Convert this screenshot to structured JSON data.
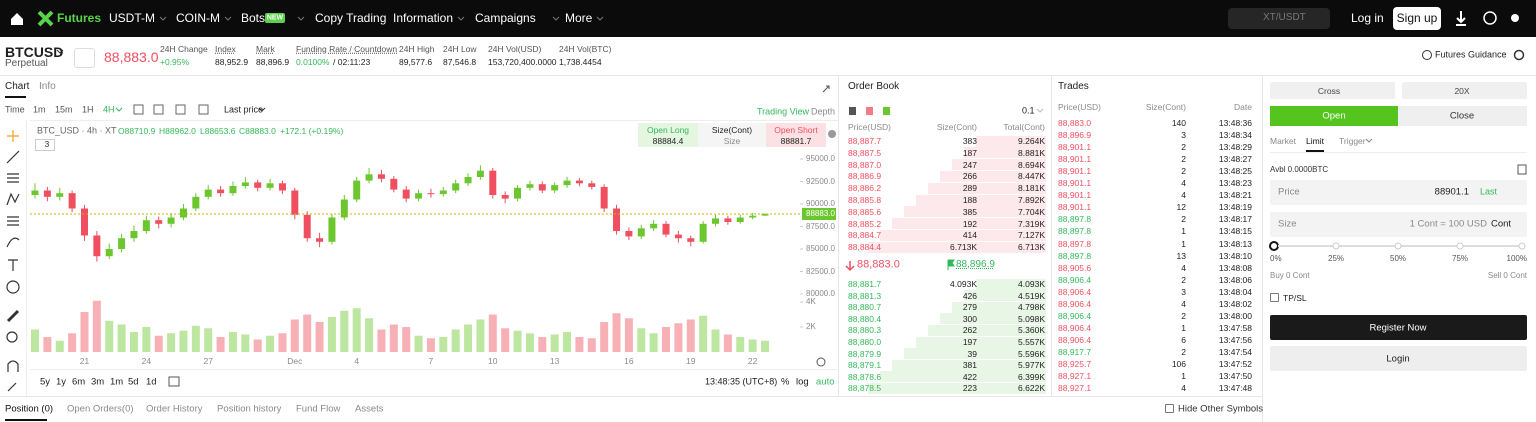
{
  "nav": {
    "logo": "Futures",
    "menu": [
      "USDT-M",
      "COIN-M",
      "Bots",
      "Copy Trading",
      "Information",
      "Campaigns",
      "More"
    ],
    "badge": "NEW",
    "search": "XT/USDT",
    "login": "Log in",
    "signup": "Sign up"
  },
  "ticker": {
    "symbol": "BTCUSD",
    "subtitle": "Perpetual",
    "price": "88,883.0",
    "stats": [
      {
        "label": "24H Change",
        "value": "+0.95%"
      },
      {
        "label": "Index",
        "value": "88,952.9"
      },
      {
        "label": "Mark",
        "value": "88,896.9"
      },
      {
        "label": "Funding Rate / Countdown",
        "value": "0.0100%",
        "value2": "/ 02:11:23"
      },
      {
        "label": "24H High",
        "value": "89,577.6"
      },
      {
        "label": "24H Low",
        "value": "87,546.8"
      },
      {
        "label": "24H Vol(USD)",
        "value": "153,720,400.0000"
      },
      {
        "label": "24H Vol(BTC)",
        "value": "1,738.4454"
      }
    ],
    "guidance": "Futures Guidance"
  },
  "chart": {
    "tabs": [
      "Chart",
      "Info"
    ],
    "time_label": "Time",
    "intervals": [
      "1m",
      "15m",
      "1H",
      "4H"
    ],
    "price_type": "Last price",
    "views": [
      "Trading View",
      "Depth"
    ],
    "legend": "BTC_USD · 4h · XT",
    "ohlc": [
      "O88710.9",
      "H88962.0",
      "L88653.6",
      "C88883.0",
      "+172.1 (+0.19%)"
    ],
    "count": "3",
    "open_long": "Open Long",
    "long_price": "88884.4",
    "size_label": "Size(Cont)",
    "size": "Size",
    "open_short": "Open Short",
    "short_price": "88881.7",
    "ranges": [
      "5y",
      "1y",
      "6m",
      "3m",
      "1m",
      "5d",
      "1d"
    ],
    "clock": "13:48:35 (UTC+8)",
    "scale_options": [
      "%",
      "log",
      "auto"
    ],
    "up_color": "#6cc72f",
    "down_color": "#ef4f5f",
    "ylim": [
      80000,
      95000
    ],
    "yticks": [
      {
        "value": 95000,
        "label": "95000.0"
      },
      {
        "value": 92500,
        "label": "92500.0"
      },
      {
        "value": 90000,
        "label": "90000.0"
      },
      {
        "value": 87500,
        "label": "87500.0"
      },
      {
        "value": 85000,
        "label": "85000.0"
      },
      {
        "value": 82500,
        "label": "82500.0"
      },
      {
        "value": 80000,
        "label": "80000.0"
      }
    ],
    "last_price": {
      "value": 88883,
      "label": "88883.0"
    },
    "volume_lim": [
      0,
      4000
    ],
    "volume_ticks": [
      {
        "value": 4000,
        "label": "4K"
      },
      {
        "value": 2000,
        "label": "2K"
      }
    ],
    "x_labels": [
      null,
      null,
      null,
      null,
      "21",
      null,
      null,
      null,
      null,
      "24",
      null,
      null,
      null,
      null,
      "27",
      null,
      null,
      null,
      null,
      null,
      null,
      "Dec",
      null,
      null,
      null,
      null,
      "4",
      null,
      null,
      null,
      null,
      null,
      "7",
      null,
      null,
      null,
      null,
      "10",
      null,
      null,
      null,
      null,
      "13",
      null,
      null,
      null,
      null,
      null,
      "16",
      null,
      null,
      null,
      null,
      "19",
      null,
      null,
      null,
      null,
      "22",
      null
    ],
    "candles": [
      [
        91000,
        92300,
        90600,
        91500
      ],
      [
        91500,
        91900,
        90300,
        90800
      ],
      [
        90800,
        91800,
        90400,
        91200
      ],
      [
        91200,
        91500,
        89100,
        89500
      ],
      [
        89500,
        89900,
        85900,
        86500
      ],
      [
        86500,
        87000,
        83600,
        84200
      ],
      [
        84200,
        85600,
        83900,
        85000
      ],
      [
        85000,
        86700,
        84600,
        86200
      ],
      [
        86200,
        87600,
        85800,
        87000
      ],
      [
        87000,
        88700,
        86700,
        88200
      ],
      [
        88200,
        88600,
        87300,
        87800
      ],
      [
        87800,
        89000,
        87400,
        88500
      ],
      [
        88500,
        90000,
        88200,
        89500
      ],
      [
        89500,
        91200,
        89200,
        90800
      ],
      [
        90800,
        92100,
        90500,
        91600
      ],
      [
        91600,
        92000,
        90800,
        91200
      ],
      [
        91200,
        92500,
        90900,
        92000
      ],
      [
        92000,
        93000,
        91700,
        92400
      ],
      [
        92400,
        92700,
        91400,
        91800
      ],
      [
        91800,
        92800,
        91500,
        92300
      ],
      [
        92300,
        92600,
        91100,
        91500
      ],
      [
        91500,
        91800,
        88300,
        88800
      ],
      [
        88800,
        89200,
        85800,
        86200
      ],
      [
        86200,
        86800,
        85200,
        85800
      ],
      [
        85800,
        88900,
        85500,
        88500
      ],
      [
        88500,
        91000,
        88200,
        90500
      ],
      [
        90500,
        93000,
        90200,
        92600
      ],
      [
        92600,
        94000,
        92300,
        93300
      ],
      [
        93300,
        93800,
        92400,
        92800
      ],
      [
        92800,
        93100,
        91300,
        91600
      ],
      [
        91600,
        92000,
        90200,
        90600
      ],
      [
        90600,
        91600,
        90300,
        91200
      ],
      [
        91200,
        91700,
        90700,
        91100
      ],
      [
        91100,
        91900,
        90800,
        91500
      ],
      [
        91500,
        92700,
        91200,
        92300
      ],
      [
        92300,
        93400,
        92000,
        93000
      ],
      [
        93000,
        94300,
        92700,
        93700
      ],
      [
        93700,
        94000,
        90600,
        91000
      ],
      [
        91000,
        91400,
        90100,
        90600
      ],
      [
        90600,
        92100,
        90300,
        91800
      ],
      [
        91800,
        92600,
        91500,
        92200
      ],
      [
        92200,
        92500,
        91200,
        91500
      ],
      [
        91500,
        92400,
        91200,
        92100
      ],
      [
        92100,
        93000,
        91800,
        92600
      ],
      [
        92600,
        92900,
        92000,
        92300
      ],
      [
        92300,
        92600,
        91600,
        91900
      ],
      [
        91900,
        92200,
        89100,
        89500
      ],
      [
        89500,
        89900,
        86600,
        87000
      ],
      [
        87000,
        87400,
        86000,
        86400
      ],
      [
        86400,
        87700,
        86100,
        87300
      ],
      [
        87300,
        88200,
        87000,
        87800
      ],
      [
        87800,
        88100,
        86300,
        86600
      ],
      [
        86600,
        87000,
        85700,
        86200
      ],
      [
        86200,
        86500,
        85300,
        85800
      ],
      [
        85800,
        88100,
        85600,
        87800
      ],
      [
        87800,
        88800,
        87500,
        88400
      ],
      [
        88400,
        88700,
        87700,
        88000
      ],
      [
        88000,
        88800,
        87800,
        88500
      ],
      [
        88500,
        89000,
        88300,
        88700
      ],
      [
        88710.9,
        88962,
        88653.6,
        88883
      ]
    ],
    "volumes": [
      1800,
      1200,
      900,
      1500,
      3200,
      4100,
      2500,
      2200,
      1600,
      2000,
      1300,
      1500,
      1700,
      2100,
      1900,
      1200,
      1600,
      1400,
      1000,
      1300,
      1500,
      2600,
      3000,
      2400,
      2800,
      3300,
      3500,
      2700,
      1800,
      2200,
      2000,
      1300,
      1100,
      1200,
      1800,
      2200,
      2600,
      3000,
      1900,
      1700,
      1500,
      1200,
      1400,
      1600,
      1200,
      1100,
      2400,
      3100,
      2700,
      1900,
      1500,
      2000,
      2300,
      2600,
      2900,
      1800,
      1400,
      1200,
      1000,
      900
    ]
  },
  "order_book": {
    "title": "Order Book",
    "precision": "0.1",
    "headers": [
      "Price(USD)",
      "Size(Cont)",
      "Total(Cont)"
    ],
    "asks": [
      [
        "88,887.7",
        "383",
        "9.264K"
      ],
      [
        "88,887.5",
        "187",
        "8.881K"
      ],
      [
        "88,887.0",
        "247",
        "8.694K"
      ],
      [
        "88,886.9",
        "266",
        "8.447K"
      ],
      [
        "88,886.2",
        "289",
        "8.181K"
      ],
      [
        "88,885.8",
        "188",
        "7.892K"
      ],
      [
        "88,885.6",
        "385",
        "7.704K"
      ],
      [
        "88,885.2",
        "192",
        "7.319K"
      ],
      [
        "88,884.7",
        "414",
        "7.127K"
      ],
      [
        "88,884.4",
        "6.713K",
        "6.713K"
      ]
    ],
    "last": "88,883.0",
    "mark": "88,896.9",
    "bids": [
      [
        "88,881.7",
        "4.093K",
        "4.093K"
      ],
      [
        "88,881.3",
        "426",
        "4.519K"
      ],
      [
        "88,880.7",
        "279",
        "4.798K"
      ],
      [
        "88,880.4",
        "300",
        "5.098K"
      ],
      [
        "88,880.3",
        "262",
        "5.360K"
      ],
      [
        "88,880.0",
        "197",
        "5.557K"
      ],
      [
        "88,879.9",
        "39",
        "5.596K"
      ],
      [
        "88,879.1",
        "381",
        "5.977K"
      ],
      [
        "88,878.6",
        "422",
        "6.399K"
      ],
      [
        "88,878.5",
        "223",
        "6.622K"
      ]
    ]
  },
  "trades": {
    "title": "Trades",
    "headers": [
      "Price(USD)",
      "Size(Cont)",
      "Date"
    ],
    "rows": [
      [
        "88,883.0",
        "140",
        "13:48:36"
      ],
      [
        "88,896.9",
        "3",
        "13:48:34"
      ],
      [
        "88,901.1",
        "2",
        "13:48:29"
      ],
      [
        "88,901.1",
        "2",
        "13:48:27"
      ],
      [
        "88,901.1",
        "2",
        "13:48:25"
      ],
      [
        "88,901.1",
        "4",
        "13:48:23"
      ],
      [
        "88,901.1",
        "4",
        "13:48:21"
      ],
      [
        "88,901.1",
        "12",
        "13:48:19"
      ],
      [
        "88,897.8",
        "2",
        "13:48:17"
      ],
      [
        "88,897.8",
        "1",
        "13:48:15"
      ],
      [
        "88,897.8",
        "1",
        "13:48:13"
      ],
      [
        "88,897.8",
        "13",
        "13:48:10"
      ],
      [
        "88,905.6",
        "4",
        "13:48:08"
      ],
      [
        "88,906.4",
        "2",
        "13:48:06"
      ],
      [
        "88,906.4",
        "3",
        "13:48:04"
      ],
      [
        "88,906.4",
        "4",
        "13:48:02"
      ],
      [
        "88,906.4",
        "2",
        "13:48:00"
      ],
      [
        "88,906.4",
        "1",
        "13:47:58"
      ],
      [
        "88,906.4",
        "6",
        "13:47:56"
      ],
      [
        "88,917.7",
        "2",
        "13:47:54"
      ],
      [
        "88,925.7",
        "106",
        "13:47:52"
      ],
      [
        "88,927.1",
        "1",
        "13:47:50"
      ],
      [
        "88,927.1",
        "4",
        "13:47:48"
      ]
    ],
    "colors": [
      "#ef4f5f",
      "#ef4f5f",
      "#ef4f5f",
      "#ef4f5f",
      "#ef4f5f",
      "#ef4f5f",
      "#ef4f5f",
      "#ef4f5f",
      "#35b85a",
      "#35b85a",
      "#ef4f5f",
      "#35b85a",
      "#ef4f5f",
      "#35b85a",
      "#ef4f5f",
      "#ef4f5f",
      "#35b85a",
      "#ef4f5f",
      "#ef4f5f",
      "#35b85a",
      "#ef4f5f",
      "#ef4f5f",
      "#ef4f5f"
    ]
  },
  "order_form": {
    "margin_mode": "Cross",
    "leverage": "20X",
    "sides": [
      "Open",
      "Close"
    ],
    "types": [
      "Market",
      "Limit",
      "Trigger"
    ],
    "available": "Avbl 0.0000BTC",
    "price_label": "Price",
    "price": "88901.1",
    "last": "Last",
    "size_label": "Size",
    "size_hint": "1 Cont = 100 USD",
    "size_unit": "Cont",
    "marks": [
      "0%",
      "25%",
      "50%",
      "75%",
      "100%"
    ],
    "buy": "Buy 0 Cont",
    "sell": "Sell 0 Cont",
    "tpsl": "TP/SL",
    "register": "Register Now",
    "login": "Login"
  },
  "bottom": {
    "tabs": [
      "Position (0)",
      "Open Orders(0)",
      "Order History",
      "Position history",
      "Fund Flow",
      "Assets"
    ],
    "hide": "Hide Other Symbols"
  }
}
